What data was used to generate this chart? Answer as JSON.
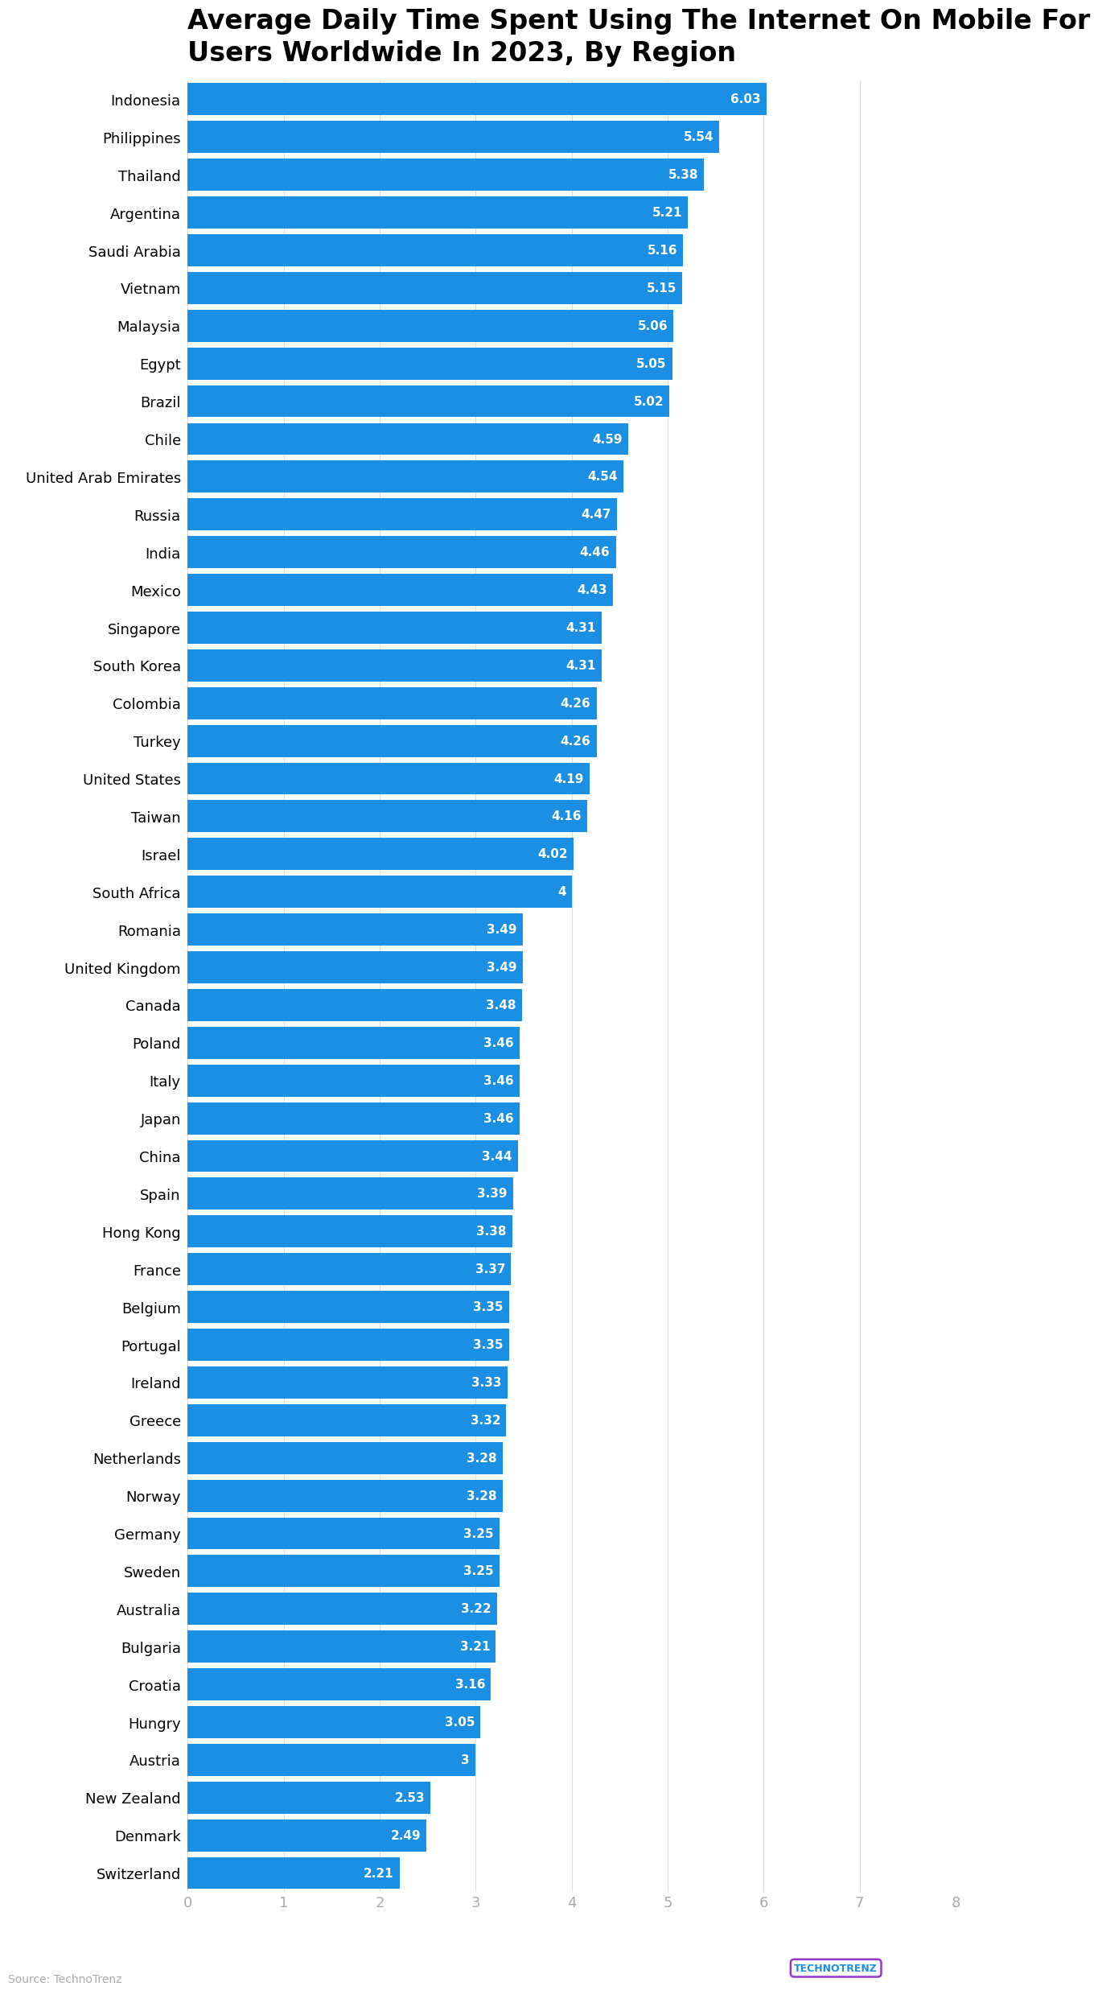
{
  "title": "Average Daily Time Spent Using The Internet On Mobile For\nUsers Worldwide In 2023, By Region",
  "categories": [
    "Indonesia",
    "Philippines",
    "Thailand",
    "Argentina",
    "Saudi Arabia",
    "Vietnam",
    "Malaysia",
    "Egypt",
    "Brazil",
    "Chile",
    "United Arab Emirates",
    "Russia",
    "India",
    "Mexico",
    "Singapore",
    "South Korea",
    "Colombia",
    "Turkey",
    "United States",
    "Taiwan",
    "Israel",
    "South Africa",
    "Romania",
    "United Kingdom",
    "Canada",
    "Poland",
    "Italy",
    "Japan",
    "China",
    "Spain",
    "Hong Kong",
    "France",
    "Belgium",
    "Portugal",
    "Ireland",
    "Greece",
    "Netherlands",
    "Norway",
    "Germany",
    "Sweden",
    "Australia",
    "Bulgaria",
    "Croatia",
    "Hungry",
    "Austria",
    "New Zealand",
    "Denmark",
    "Switzerland"
  ],
  "values": [
    6.03,
    5.54,
    5.38,
    5.21,
    5.16,
    5.15,
    5.06,
    5.05,
    5.02,
    4.59,
    4.54,
    4.47,
    4.46,
    4.43,
    4.31,
    4.31,
    4.26,
    4.26,
    4.19,
    4.16,
    4.02,
    4.0,
    3.49,
    3.49,
    3.48,
    3.46,
    3.46,
    3.46,
    3.44,
    3.39,
    3.38,
    3.37,
    3.35,
    3.35,
    3.33,
    3.32,
    3.28,
    3.28,
    3.25,
    3.25,
    3.22,
    3.21,
    3.16,
    3.05,
    3.0,
    2.53,
    2.49,
    2.21
  ],
  "bar_color": "#1a8fe3",
  "label_color": "white",
  "title_color": "#000000",
  "axis_label_color": "#aaaaaa",
  "source_text": "Source: TechnoTrenz",
  "source_color": "#aaaaaa",
  "background_color": "#ffffff",
  "xlim": [
    0,
    8
  ],
  "xticks": [
    0,
    1,
    2,
    3,
    4,
    5,
    6,
    7,
    8
  ],
  "grid_color": "#dddddd",
  "bar_height": 0.85,
  "title_fontsize": 24,
  "label_fontsize": 11,
  "category_fontsize": 13,
  "tick_fontsize": 13
}
